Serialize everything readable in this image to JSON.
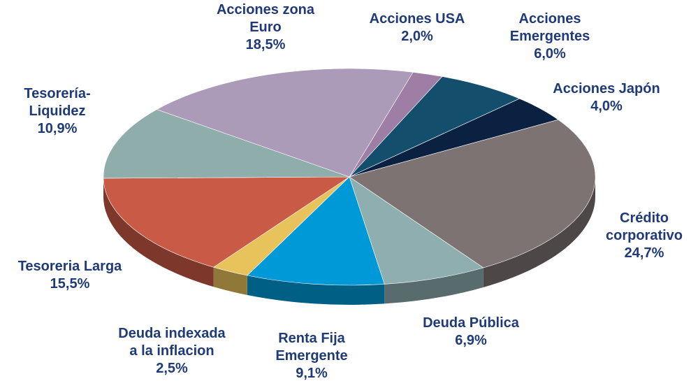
{
  "chart_data": {
    "type": "pie",
    "title": "",
    "slices": [
      {
        "name": "Acciones USA",
        "lines": [
          "Acciones USA",
          "2,0%"
        ],
        "value": 2.0,
        "color": "#9e7ea4"
      },
      {
        "name": "Acciones Emergentes",
        "lines": [
          "Acciones",
          "Emergentes",
          "6,0%"
        ],
        "value": 6.0,
        "color": "#134e6c"
      },
      {
        "name": "Acciones Japón",
        "lines": [
          "Acciones Japón",
          "4,0%"
        ],
        "value": 4.0,
        "color": "#0b2141"
      },
      {
        "name": "Crédito corporativo",
        "lines": [
          "Crédito",
          "corporativo",
          "24,7%"
        ],
        "value": 24.7,
        "color": "#7e7373"
      },
      {
        "name": "Deuda Pública",
        "lines": [
          "Deuda Pública",
          "6,9%"
        ],
        "value": 6.9,
        "color": "#8faeb0"
      },
      {
        "name": "Renta Fija Emergente",
        "lines": [
          "Renta Fija",
          "Emergente",
          "9,1%"
        ],
        "value": 9.1,
        "color": "#0099d7"
      },
      {
        "name": "Deuda indexada a la inflacion",
        "lines": [
          "Deuda indexada",
          "a la inflacion",
          "2,5%"
        ],
        "value": 2.5,
        "color": "#e8c25a"
      },
      {
        "name": "Tesoreria Larga",
        "lines": [
          "Tesoreria Larga",
          "15,5%"
        ],
        "value": 15.5,
        "color": "#c95a45"
      },
      {
        "name": "Tesorería-Liquidez",
        "lines": [
          "Tesorería-",
          "Liquidez",
          "10,9%"
        ],
        "value": 10.9,
        "color": "#8fadaa"
      },
      {
        "name": "Acciones zona Euro",
        "lines": [
          "Acciones zona",
          "Euro",
          "18,5%"
        ],
        "value": 18.5,
        "color": "#ab9ab8"
      }
    ]
  }
}
